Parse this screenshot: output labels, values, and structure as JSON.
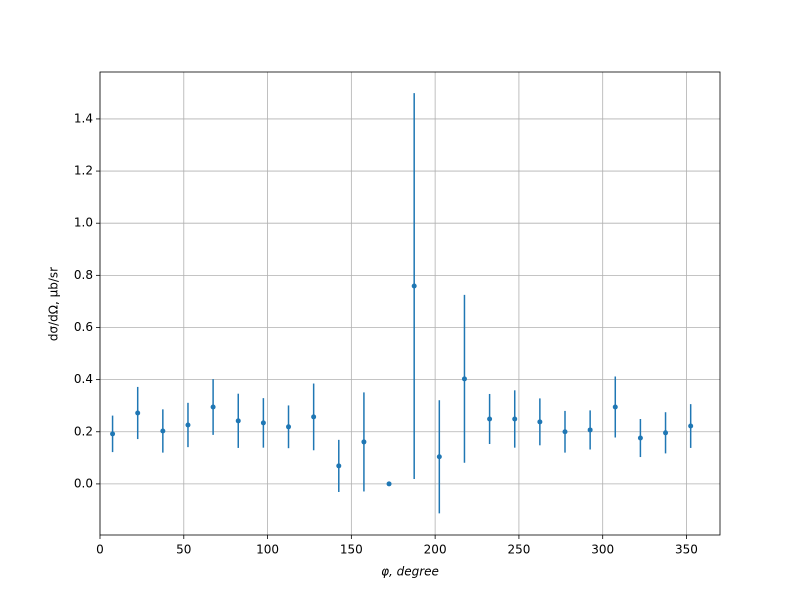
{
  "chart_data": {
    "type": "errorbar",
    "xlabel": "φ, degree",
    "ylabel": "dσ/dΩ, μb/sr",
    "x": [
      7.5,
      22.5,
      37.5,
      52.5,
      67.5,
      82.5,
      97.5,
      112.5,
      127.5,
      142.5,
      157.5,
      172.5,
      187.5,
      202.5,
      217.5,
      232.5,
      247.5,
      262.5,
      277.5,
      292.5,
      307.5,
      322.5,
      337.5,
      352.5
    ],
    "series": [
      {
        "color": "#1f77b4",
        "values": [
          0.192,
          0.272,
          0.203,
          0.226,
          0.295,
          0.242,
          0.234,
          0.219,
          0.257,
          0.069,
          0.161,
          0.0,
          0.759,
          0.104,
          0.403,
          0.249,
          0.249,
          0.238,
          0.2,
          0.207,
          0.295,
          0.176,
          0.196,
          0.222
        ],
        "errors": [
          0.07,
          0.1,
          0.083,
          0.085,
          0.107,
          0.104,
          0.095,
          0.082,
          0.128,
          0.1,
          0.19,
          0.0,
          0.74,
          0.217,
          0.322,
          0.096,
          0.11,
          0.09,
          0.08,
          0.075,
          0.117,
          0.073,
          0.079,
          0.084
        ]
      }
    ],
    "xlim": [
      0,
      370
    ],
    "ylim": [
      -0.196,
      1.58
    ],
    "xticks": [
      0,
      50,
      100,
      150,
      200,
      250,
      300,
      350
    ],
    "yticks": [
      {
        "value": 0,
        "label": "0.0"
      },
      0.2,
      0.4,
      0.6,
      0.8,
      {
        "value": 1,
        "label": "1.0"
      },
      1.2,
      1.4
    ],
    "grid": true
  }
}
